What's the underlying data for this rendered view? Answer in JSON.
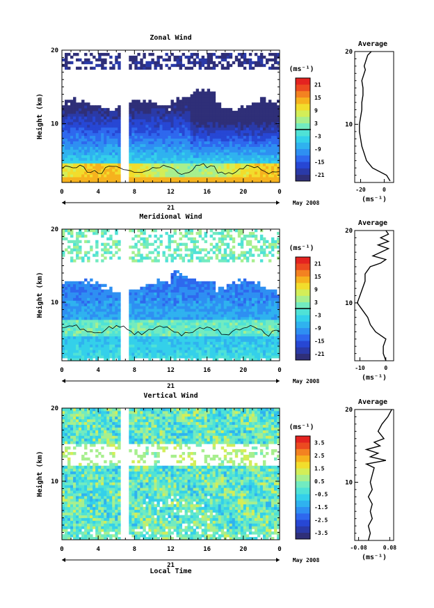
{
  "figure": {
    "xlabel": "Local Time",
    "ylabel": "Height (km)",
    "date_day": "21",
    "date_label": "May 2008",
    "colorbar_unit": "(ms⁻¹)",
    "average_title": "Average",
    "average_unit": "(ms⁻¹)"
  },
  "chart_data": [
    {
      "type": "heatmap",
      "title": "Zonal Wind",
      "xlabel": "",
      "ylabel": "Height (km)",
      "xlim": [
        0,
        24
      ],
      "ylim": [
        2,
        20
      ],
      "xticks": [
        "0",
        "4",
        "8",
        "12",
        "16",
        "20",
        "0"
      ],
      "xtick_values": [
        0,
        4,
        8,
        12,
        16,
        20,
        24
      ],
      "yticks": [
        "20",
        "10"
      ],
      "ytick_values": [
        20,
        10
      ],
      "data_gap": [
        6.5,
        7.3
      ],
      "colorbar": {
        "ticks": [
          "21",
          "15",
          "9",
          "3",
          "-3",
          "-9",
          "-15",
          "-21"
        ],
        "tick_values": [
          21,
          15,
          9,
          3,
          -3,
          -9,
          -15,
          -21
        ],
        "range": [
          -24,
          24
        ],
        "zero_contour": true
      },
      "profile": {
        "title": "Average",
        "xticks": [
          "-20",
          "0"
        ],
        "xtick_values": [
          -20,
          0
        ],
        "xlim": [
          -25,
          8
        ],
        "ylim": [
          2,
          20
        ],
        "yticks": [
          "20",
          "10"
        ],
        "height": [
          2.2,
          3,
          4,
          5,
          6,
          7,
          8,
          9,
          10,
          11,
          12,
          13,
          14,
          15,
          16,
          17,
          17.5,
          18,
          18.5,
          19,
          19.5,
          20
        ],
        "value": [
          5,
          2,
          -10,
          -15,
          -17,
          -19,
          -20,
          -21,
          -21,
          -20,
          -19,
          -19,
          -18,
          -18,
          -19,
          -17,
          -16,
          -17,
          -16,
          -15,
          -14,
          -11
        ]
      }
    },
    {
      "type": "heatmap",
      "title": "Meridional Wind",
      "xlabel": "",
      "ylabel": "Height (km)",
      "xlim": [
        0,
        24
      ],
      "ylim": [
        2,
        20
      ],
      "xticks": [
        "0",
        "4",
        "8",
        "12",
        "16",
        "20",
        "0"
      ],
      "xtick_values": [
        0,
        4,
        8,
        12,
        16,
        20,
        24
      ],
      "yticks": [
        "20",
        "10"
      ],
      "ytick_values": [
        20,
        10
      ],
      "data_gap": [
        6.5,
        7.3
      ],
      "colorbar": {
        "ticks": [
          "21",
          "15",
          "9",
          "3",
          "-3",
          "-9",
          "-15",
          "-21"
        ],
        "tick_values": [
          21,
          15,
          9,
          3,
          -3,
          -9,
          -15,
          -21
        ],
        "range": [
          -24,
          24
        ],
        "zero_contour": true
      },
      "profile": {
        "title": "Average",
        "xticks": [
          "-10",
          "0"
        ],
        "xtick_values": [
          -10,
          0
        ],
        "xlim": [
          -12,
          3
        ],
        "ylim": [
          2,
          20
        ],
        "yticks": [
          "20",
          "10"
        ],
        "height": [
          2,
          3,
          4,
          5,
          6,
          7,
          8,
          9,
          10,
          11,
          12,
          13,
          14,
          15,
          15.5,
          16,
          16.5,
          17,
          17.5,
          18,
          18.5,
          19,
          19.5,
          20
        ],
        "value": [
          0,
          -1,
          -1,
          0,
          -4,
          -6,
          -7,
          -9,
          -11,
          -10,
          -9,
          -8,
          -8,
          -6,
          -2,
          0,
          -5,
          -2,
          1,
          -3,
          1,
          -2,
          1,
          0
        ]
      }
    },
    {
      "type": "heatmap",
      "title": "Vertical Wind",
      "xlabel": "Local Time",
      "ylabel": "Height (km)",
      "xlim": [
        0,
        24
      ],
      "ylim": [
        2,
        20
      ],
      "xticks": [
        "0",
        "4",
        "8",
        "12",
        "16",
        "20",
        "0"
      ],
      "xtick_values": [
        0,
        4,
        8,
        12,
        16,
        20,
        24
      ],
      "yticks": [
        "20",
        "10"
      ],
      "ytick_values": [
        20,
        10
      ],
      "data_gap": [
        6.5,
        7.3
      ],
      "colorbar": {
        "ticks": [
          "3.5",
          "2.5",
          "1.5",
          "0.5",
          "-0.5",
          "-1.5",
          "-2.5",
          "-3.5"
        ],
        "tick_values": [
          3.5,
          2.5,
          1.5,
          0.5,
          -0.5,
          -1.5,
          -2.5,
          -3.5
        ],
        "range": [
          -4,
          4
        ],
        "zero_contour": false
      },
      "profile": {
        "title": "Average",
        "xticks": [
          "-0.08",
          "0.08"
        ],
        "xtick_values": [
          -0.08,
          0.08
        ],
        "xlim": [
          -0.1,
          0.1
        ],
        "ylim": [
          2,
          20
        ],
        "yticks": [
          "20",
          "10"
        ],
        "height": [
          2,
          3,
          4,
          5,
          6,
          7,
          8,
          9,
          10,
          11,
          12,
          12.5,
          13,
          13.5,
          14,
          14.5,
          15,
          15.5,
          16,
          17,
          18,
          19,
          20
        ],
        "value": [
          -0.03,
          -0.02,
          -0.03,
          -0.01,
          -0.02,
          -0.01,
          -0.03,
          -0.01,
          -0.02,
          -0.01,
          0.0,
          -0.04,
          0.06,
          -0.02,
          0.02,
          -0.04,
          0.03,
          0.0,
          0.05,
          0.02,
          0.04,
          0.07,
          0.09
        ]
      }
    }
  ]
}
